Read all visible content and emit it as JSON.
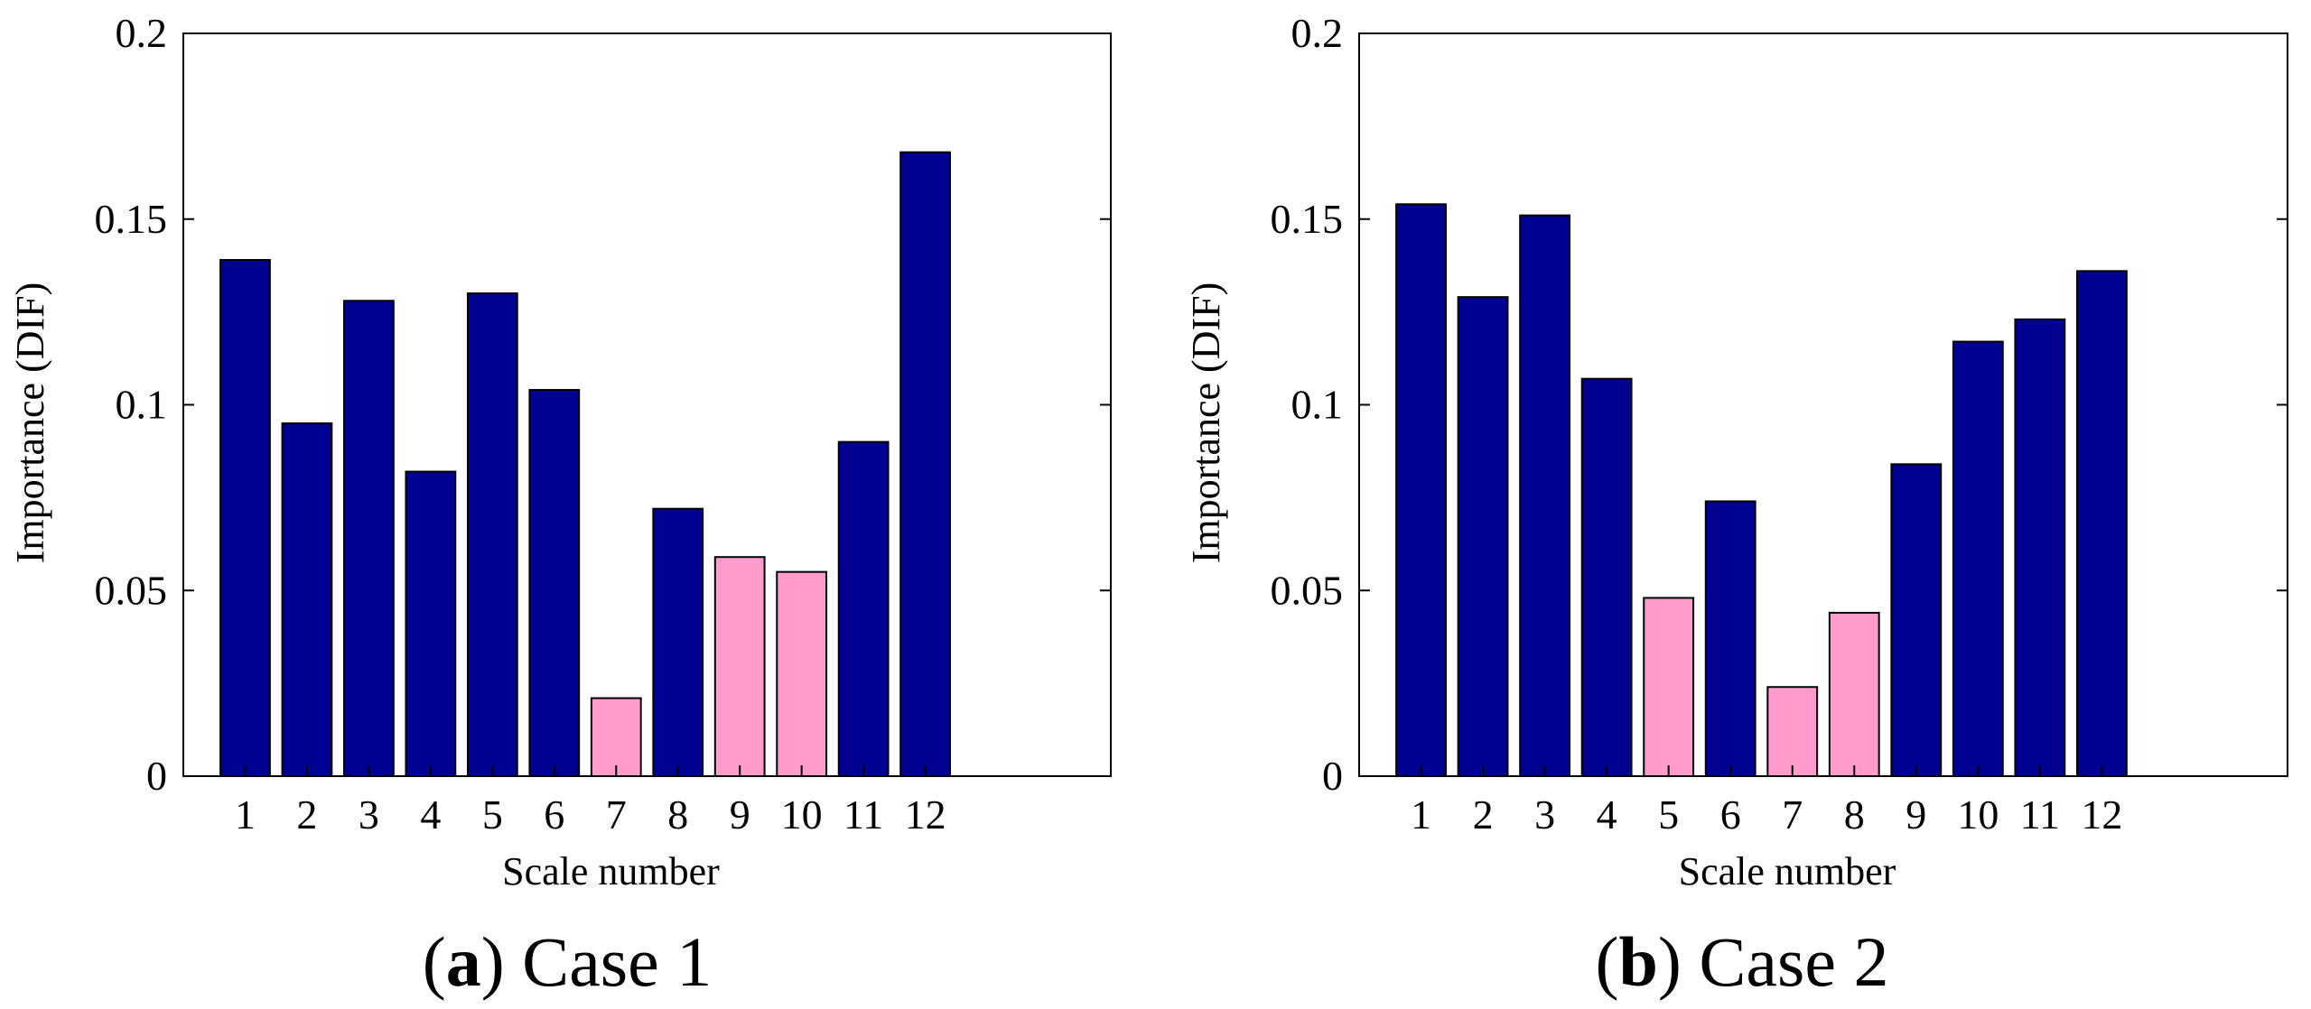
{
  "colors": {
    "primary_bar": "#000091",
    "highlight_bar": "#ff9ccc"
  },
  "chart_data": [
    {
      "type": "bar",
      "id": "a",
      "caption_letter": "a",
      "caption_text": " Case 1",
      "xlabel": "Scale number",
      "ylabel": "Importance (DIF)",
      "ylim": [
        0,
        0.2
      ],
      "yticks": [
        "0",
        "0.05",
        "0.1",
        "0.15",
        "0.2"
      ],
      "ytick_values": [
        0,
        0.05,
        0.1,
        0.15,
        0.2
      ],
      "x_max": 15,
      "categories": [
        "1",
        "2",
        "3",
        "4",
        "5",
        "6",
        "7",
        "8",
        "9",
        "10",
        "11",
        "12"
      ],
      "values": [
        0.139,
        0.095,
        0.128,
        0.082,
        0.13,
        0.104,
        0.021,
        0.072,
        0.059,
        0.055,
        0.09,
        0.168
      ],
      "highlighted": [
        7,
        9,
        10
      ]
    },
    {
      "type": "bar",
      "id": "b",
      "caption_letter": "b",
      "caption_text": " Case 2",
      "xlabel": "Scale number",
      "ylabel": "Importance (DIF)",
      "ylim": [
        0,
        0.2
      ],
      "yticks": [
        "0",
        "0.05",
        "0.1",
        "0.15",
        "0.2"
      ],
      "ytick_values": [
        0,
        0.05,
        0.1,
        0.15,
        0.2
      ],
      "x_max": 15,
      "categories": [
        "1",
        "2",
        "3",
        "4",
        "5",
        "6",
        "7",
        "8",
        "9",
        "10",
        "11",
        "12"
      ],
      "values": [
        0.154,
        0.129,
        0.151,
        0.107,
        0.048,
        0.074,
        0.024,
        0.044,
        0.084,
        0.117,
        0.123,
        0.136
      ],
      "highlighted": [
        5,
        7,
        8
      ]
    }
  ]
}
